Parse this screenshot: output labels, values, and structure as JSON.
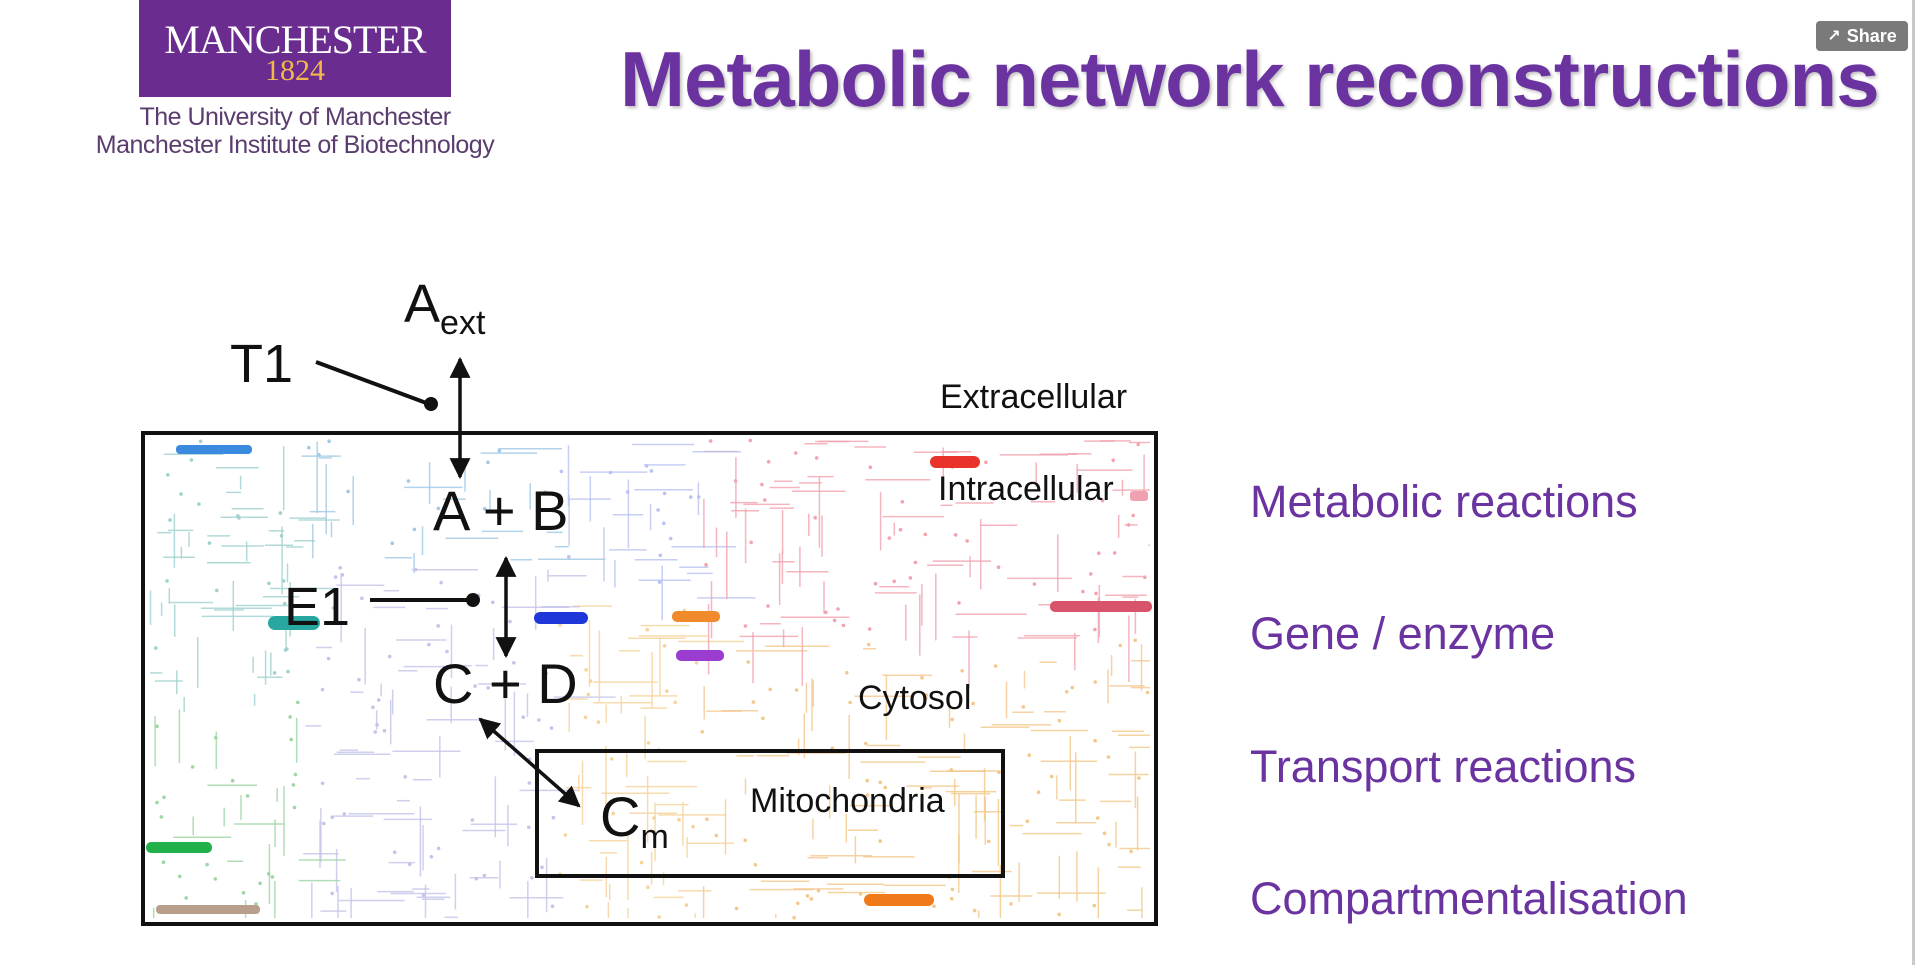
{
  "logo": {
    "name": "MANCHESTER",
    "year": "1824",
    "line1": "The University of Manchester",
    "line2": "Manchester Institute of Biotechnology"
  },
  "title": "Metabolic network reconstructions",
  "share": {
    "label": "Share",
    "icon": "share-icon"
  },
  "diagram": {
    "a_ext": {
      "main": "A",
      "sub": "ext"
    },
    "t1": "T1",
    "extracellular": "Extracellular",
    "intracellular": "Intracellular",
    "ab": "A + B",
    "e1": "E1",
    "cd": "C + D",
    "cytosol": "Cytosol",
    "mitochondria": "Mitochondria",
    "cm": {
      "main": "C",
      "sub": "m"
    }
  },
  "list": [
    "Metabolic reactions",
    "Gene / enzyme",
    "Transport reactions",
    "Compartmentalisation"
  ],
  "colors": {
    "accent": "#6a33a0",
    "brand": "#6a2c8e",
    "gold": "#f2b84b"
  }
}
